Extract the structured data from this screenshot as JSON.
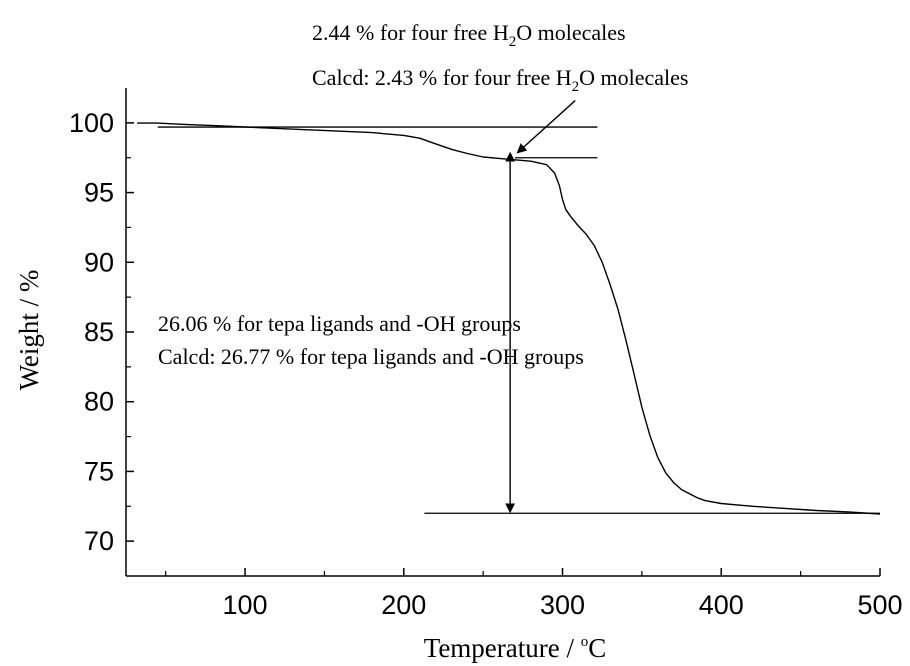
{
  "chart_data": {
    "type": "line",
    "xlabel_main": "Temperature / ",
    "xlabel_sup": "o",
    "xlabel_unit": "C",
    "ylabel": "Weight / %",
    "xlim": [
      25,
      500
    ],
    "ylim": [
      67.5,
      102.5
    ],
    "xticks": [
      100,
      200,
      300,
      400,
      500
    ],
    "yticks": [
      70,
      75,
      80,
      85,
      90,
      95,
      100
    ],
    "grid": false,
    "series": [
      {
        "x": [
          32,
          45,
          60,
          80,
          100,
          120,
          140,
          160,
          180,
          200,
          210,
          220,
          230,
          240,
          250,
          260,
          270,
          280,
          290,
          295,
          298,
          300,
          302,
          305,
          310,
          315,
          320,
          325,
          330,
          335,
          340,
          345,
          350,
          355,
          360,
          365,
          370,
          375,
          380,
          385,
          390,
          400,
          410,
          420,
          440,
          460,
          480,
          500
        ],
        "y": [
          99.98,
          99.98,
          99.9,
          99.8,
          99.7,
          99.6,
          99.5,
          99.4,
          99.3,
          99.1,
          98.9,
          98.5,
          98.1,
          97.8,
          97.55,
          97.45,
          97.35,
          97.25,
          97.0,
          96.4,
          95.5,
          94.5,
          93.8,
          93.3,
          92.6,
          92.0,
          91.2,
          90.0,
          88.4,
          86.6,
          84.4,
          82.0,
          79.6,
          77.6,
          76.0,
          74.9,
          74.2,
          73.7,
          73.4,
          73.1,
          72.9,
          72.7,
          72.6,
          72.5,
          72.35,
          72.2,
          72.1,
          71.95
        ]
      }
    ],
    "reference_lines": [
      {
        "x1": 45,
        "x2": 322,
        "y": 99.7
      },
      {
        "x1": 270,
        "x2": 322,
        "y": 97.5
      },
      {
        "x1": 213,
        "x2": 500,
        "y": 72.0
      }
    ],
    "double_arrow": {
      "x": 267,
      "y_top": 97.5,
      "y_bottom": 72.0
    },
    "pointer_arrow": {
      "x_from": 308,
      "y_from": 101.6,
      "x_to": 272,
      "y_to": 97.9
    },
    "annotations": {
      "line1_pre": "2.44 % for four free H",
      "line1_sub": "2",
      "line1_post": "O molecales",
      "line2_pre": "Calcd: 2.43 % for four free H",
      "line2_sub": "2",
      "line2_post": "O molecales",
      "line3": "26.06 % for tepa ligands and -OH groups",
      "line4": "Calcd: 26.77 % for tepa ligands and -OH groups"
    }
  }
}
